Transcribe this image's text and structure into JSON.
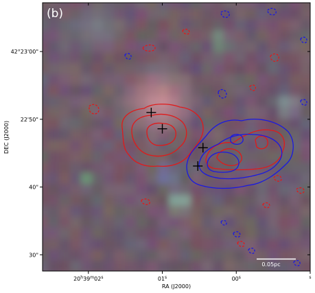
{
  "chart_data": {
    "type": "contour-image",
    "panel_label": "(b)",
    "xlabel": "RA (J2000)",
    "ylabel": "DEC (J2000)",
    "x_ticks": [
      {
        "label": "20h39m02s",
        "main": "20",
        "sup1": "h",
        "mid1": "39",
        "sup2": "m",
        "mid2": "02",
        "sup3": "s",
        "ra_s": 2
      },
      {
        "label": "01s",
        "main": "01",
        "sup3": "s",
        "ra_s": 1
      },
      {
        "label": "00s",
        "main": "00",
        "sup3": "s",
        "ra_s": 0
      },
      {
        "label": "s",
        "main": "",
        "sup3": "s",
        "ra_s": -1
      }
    ],
    "y_ticks": [
      {
        "label": "42°23'00\"",
        "value": 60
      },
      {
        "label": "22'50\"",
        "value": 50
      },
      {
        "label": "40\"",
        "value": 40
      },
      {
        "label": "30\"",
        "value": 30
      }
    ],
    "x_range_ra_s": [
      2.62,
      -1.0
    ],
    "y_range_dec_arcsec": [
      27.6,
      67.2
    ],
    "scale_bar": {
      "label": "0.05pc"
    },
    "markers": [
      {
        "ra_s": 1.15,
        "dec_arcsec": 51.0
      },
      {
        "ra_s": 1.0,
        "dec_arcsec": 48.6
      },
      {
        "ra_s": 0.45,
        "dec_arcsec": 45.8
      },
      {
        "ra_s": 0.52,
        "dec_arcsec": 43.1
      }
    ],
    "series": [
      {
        "color": "#e01a1a"
      },
      {
        "color": "#1a1ae0"
      }
    ],
    "grid": false,
    "background": "rgb composite image"
  }
}
